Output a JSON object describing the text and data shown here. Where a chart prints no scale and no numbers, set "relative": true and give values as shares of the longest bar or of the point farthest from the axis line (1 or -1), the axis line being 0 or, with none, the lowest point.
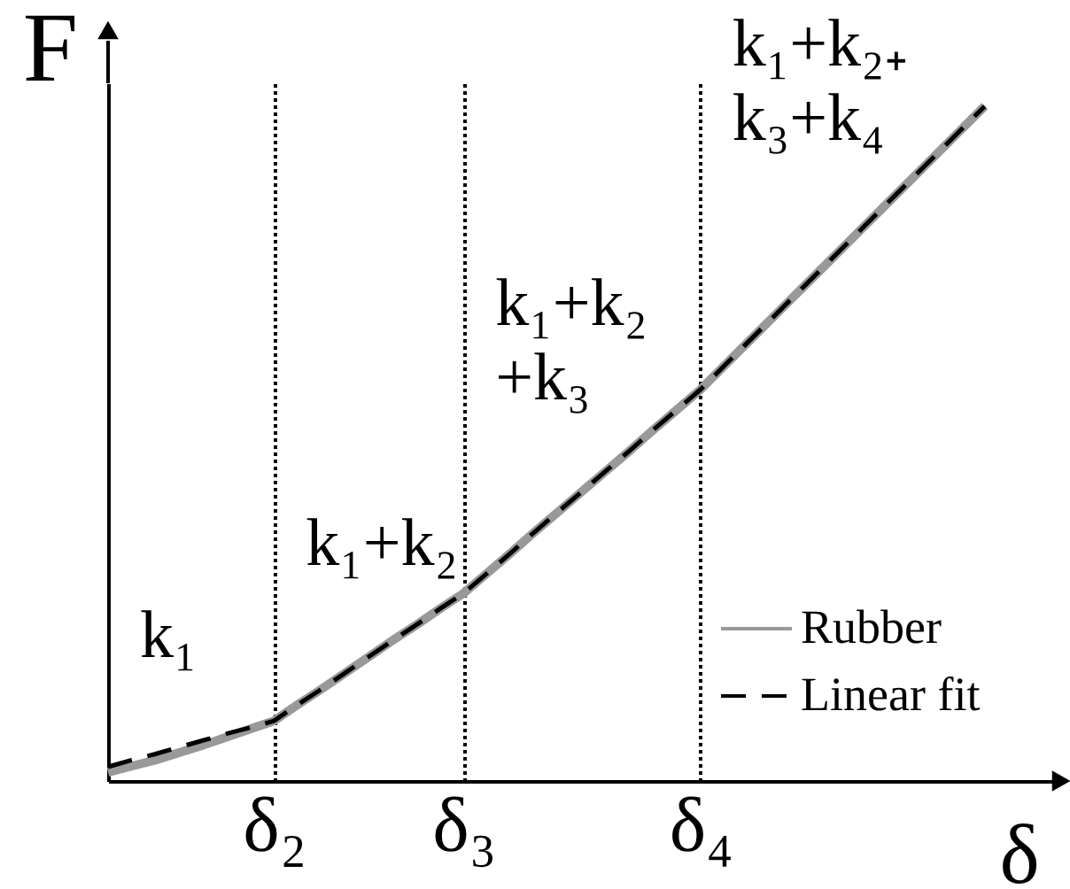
{
  "chart_data": {
    "type": "line",
    "xlabel": "δ",
    "ylabel": "F",
    "relative": true,
    "categories": [
      null,
      null,
      null,
      null,
      null,
      null,
      null,
      "δ₂",
      null,
      null,
      null,
      null,
      null,
      null,
      null,
      "δ₃",
      null,
      null,
      null,
      null,
      null,
      null,
      null,
      null,
      null,
      "δ₄",
      null,
      null,
      null,
      null,
      null,
      null,
      null,
      null,
      null,
      null,
      null,
      null,
      null,
      null,
      null
    ],
    "series": [
      {
        "name": "Rubber",
        "color": "#999999",
        "line_style": "solid",
        "values": [
          0.013,
          0.022,
          0.031,
          0.042,
          0.053,
          0.065,
          0.077,
          0.089,
          0.113,
          0.136,
          0.16,
          0.184,
          0.208,
          0.231,
          0.255,
          0.278,
          0.308,
          0.338,
          0.369,
          0.399,
          0.429,
          0.459,
          0.489,
          0.52,
          0.55,
          0.58,
          0.615,
          0.65,
          0.685,
          0.72,
          0.755,
          0.79,
          0.825,
          0.86,
          0.895,
          0.93,
          0.965,
          1,
          null,
          null,
          null
        ]
      },
      {
        "name": "Linear fit",
        "color": "#000000",
        "line_style": "dashed",
        "values": [
          0.021,
          0.031,
          0.04,
          0.05,
          0.06,
          0.07,
          0.079,
          0.089,
          0.113,
          0.136,
          0.16,
          0.184,
          0.208,
          0.231,
          0.255,
          0.278,
          0.308,
          0.338,
          0.369,
          0.399,
          0.429,
          0.459,
          0.489,
          0.52,
          0.55,
          0.58,
          0.615,
          0.65,
          0.685,
          0.72,
          0.755,
          0.79,
          0.825,
          0.86,
          0.895,
          0.93,
          0.965,
          1,
          null,
          null,
          null
        ]
      }
    ],
    "annotations": [
      "k₁",
      "k₁+k₂",
      "k₁+k₂\n+k₃",
      "k₁+k₂₊\nk₃+k₄"
    ],
    "legend": "bottom right",
    "grid": "x",
    "marker": "none",
    "tick_labels": "x"
  }
}
